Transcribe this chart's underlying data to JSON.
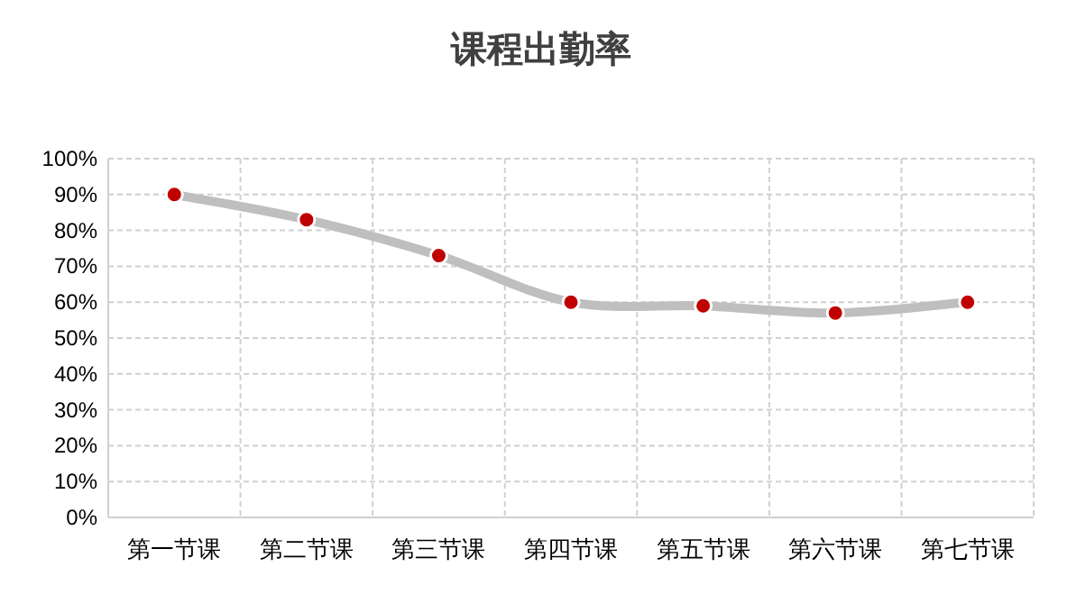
{
  "chart_data": {
    "type": "line",
    "title": "课程出勤率",
    "categories": [
      "第一节课",
      "第二节课",
      "第三节课",
      "第四节课",
      "第五节课",
      "第六节课",
      "第七节课"
    ],
    "series": [
      {
        "color": "#bfbfbf",
        "values": [
          90,
          83,
          73,
          60,
          59,
          57,
          60
        ]
      }
    ],
    "ylim": [
      0,
      100
    ],
    "yticks": [
      {
        "value": 0,
        "label": "0%"
      },
      {
        "value": 10,
        "label": "10%"
      },
      {
        "value": 20,
        "label": "20%"
      },
      {
        "value": 30,
        "label": "30%"
      },
      {
        "value": 40,
        "label": "40%"
      },
      {
        "value": 50,
        "label": "50%"
      },
      {
        "value": 60,
        "label": "60%"
      },
      {
        "value": 70,
        "label": "70%"
      },
      {
        "value": 80,
        "label": "80%"
      },
      {
        "value": 90,
        "label": "90%"
      },
      {
        "value": 100,
        "label": "100%"
      }
    ],
    "grid": true,
    "marker": "circle",
    "line_style": "solid"
  }
}
